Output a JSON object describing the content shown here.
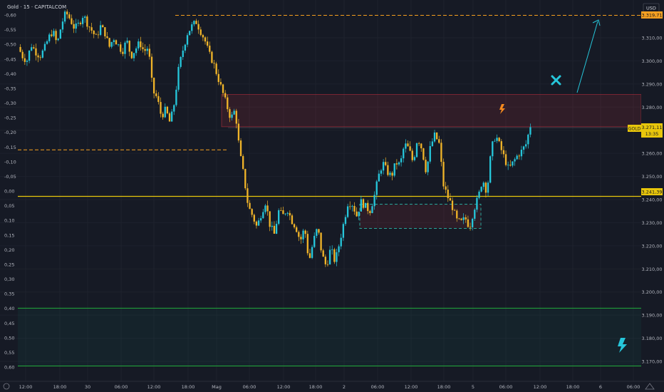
{
  "header": {
    "symbol_title": "Gold · 15 · CAPITALCOM"
  },
  "right_axis": {
    "currency": "USD",
    "labels": [
      "3.310,00",
      "3.300,00",
      "3.290,00",
      "3.280,00",
      "3.270,00",
      "3.260,00",
      "3.250,00",
      "3.240,00",
      "3.230,00",
      "3.220,00",
      "3.210,00",
      "3.200,00",
      "3.190,00",
      "3.180,00",
      "3.170,00"
    ],
    "price_tag_top": "3.319,71",
    "price_tag_mid": "3.241,39",
    "current_symbol": "GOLD",
    "current_price": "3.271,11",
    "current_countdown": "13:35"
  },
  "left_axis": {
    "labels": [
      "-0,60",
      "-0,55",
      "-0,50",
      "-0,45",
      "-0,40",
      "-0,35",
      "-0,30",
      "-0,25",
      "-0,20",
      "-0,15",
      "-0,10",
      "-0,05",
      "0,00",
      "0,05",
      "0,10",
      "0,15",
      "0,20",
      "0,25",
      "0,30",
      "0,35",
      "0,40",
      "0,45",
      "0,50",
      "0,55",
      "0,60"
    ]
  },
  "time_axis": {
    "labels": [
      "12:00",
      "18:00",
      "30",
      "06:00",
      "12:00",
      "18:00",
      "Mag",
      "06:00",
      "12:00",
      "18:00",
      "2",
      "06:00",
      "12:00",
      "18:00",
      "5",
      "06:00",
      "12:00",
      "18:00",
      "6",
      "06:00"
    ]
  },
  "colors": {
    "background": "#161a25",
    "up": "#26c6da",
    "down": "#f0b429",
    "level_line": "#e8c60b",
    "dashed_level": "#f59f1e",
    "supply_zone": "#f23645",
    "demand_zone": "#089981",
    "box_dashed": "#26a69a"
  },
  "chart_data": {
    "type": "candlestick",
    "title": "Gold · 15 · CAPITALCOM",
    "currency": "USD",
    "ylim": [
      3163,
      3322
    ],
    "current_price": 3271.11,
    "horizontal_levels": [
      {
        "price": 3241.39,
        "style": "solid"
      },
      {
        "price": 3319.71,
        "style": "dashed"
      },
      {
        "price": 3261.5,
        "style": "dashed"
      }
    ],
    "zones": [
      {
        "kind": "supply",
        "from": 3271.5,
        "to": 3285.5
      },
      {
        "kind": "demand",
        "from": 3168,
        "to": 3193
      },
      {
        "kind": "range-box",
        "from": 3227.5,
        "to": 3238
      }
    ],
    "price_path": [
      3306,
      3302,
      3300,
      3307,
      3304,
      3302,
      3305,
      3310,
      3313,
      3307,
      3316,
      3321,
      3318,
      3314,
      3316,
      3320,
      3316,
      3313,
      3310,
      3315,
      3312,
      3306,
      3310,
      3307,
      3304,
      3309,
      3302,
      3305,
      3308,
      3304,
      3306,
      3287,
      3284,
      3276,
      3279,
      3273,
      3282,
      3297,
      3305,
      3312,
      3315,
      3317,
      3313,
      3309,
      3303,
      3299,
      3293,
      3287,
      3281,
      3275,
      3279,
      3261,
      3250,
      3237,
      3233,
      3228,
      3234,
      3239,
      3229,
      3225,
      3235,
      3233,
      3236,
      3231,
      3228,
      3222,
      3228,
      3213,
      3222,
      3228,
      3216,
      3211,
      3219,
      3213,
      3221,
      3230,
      3239,
      3238,
      3233,
      3239,
      3237,
      3235,
      3241,
      3250,
      3256,
      3252,
      3250,
      3256,
      3255,
      3264,
      3262,
      3256,
      3267,
      3262,
      3252,
      3263,
      3268,
      3264,
      3246,
      3241,
      3237,
      3231,
      3230,
      3232,
      3228,
      3236,
      3241,
      3249,
      3243,
      3262,
      3268,
      3263,
      3258,
      3253,
      3256,
      3259,
      3261,
      3264,
      3272
    ]
  }
}
